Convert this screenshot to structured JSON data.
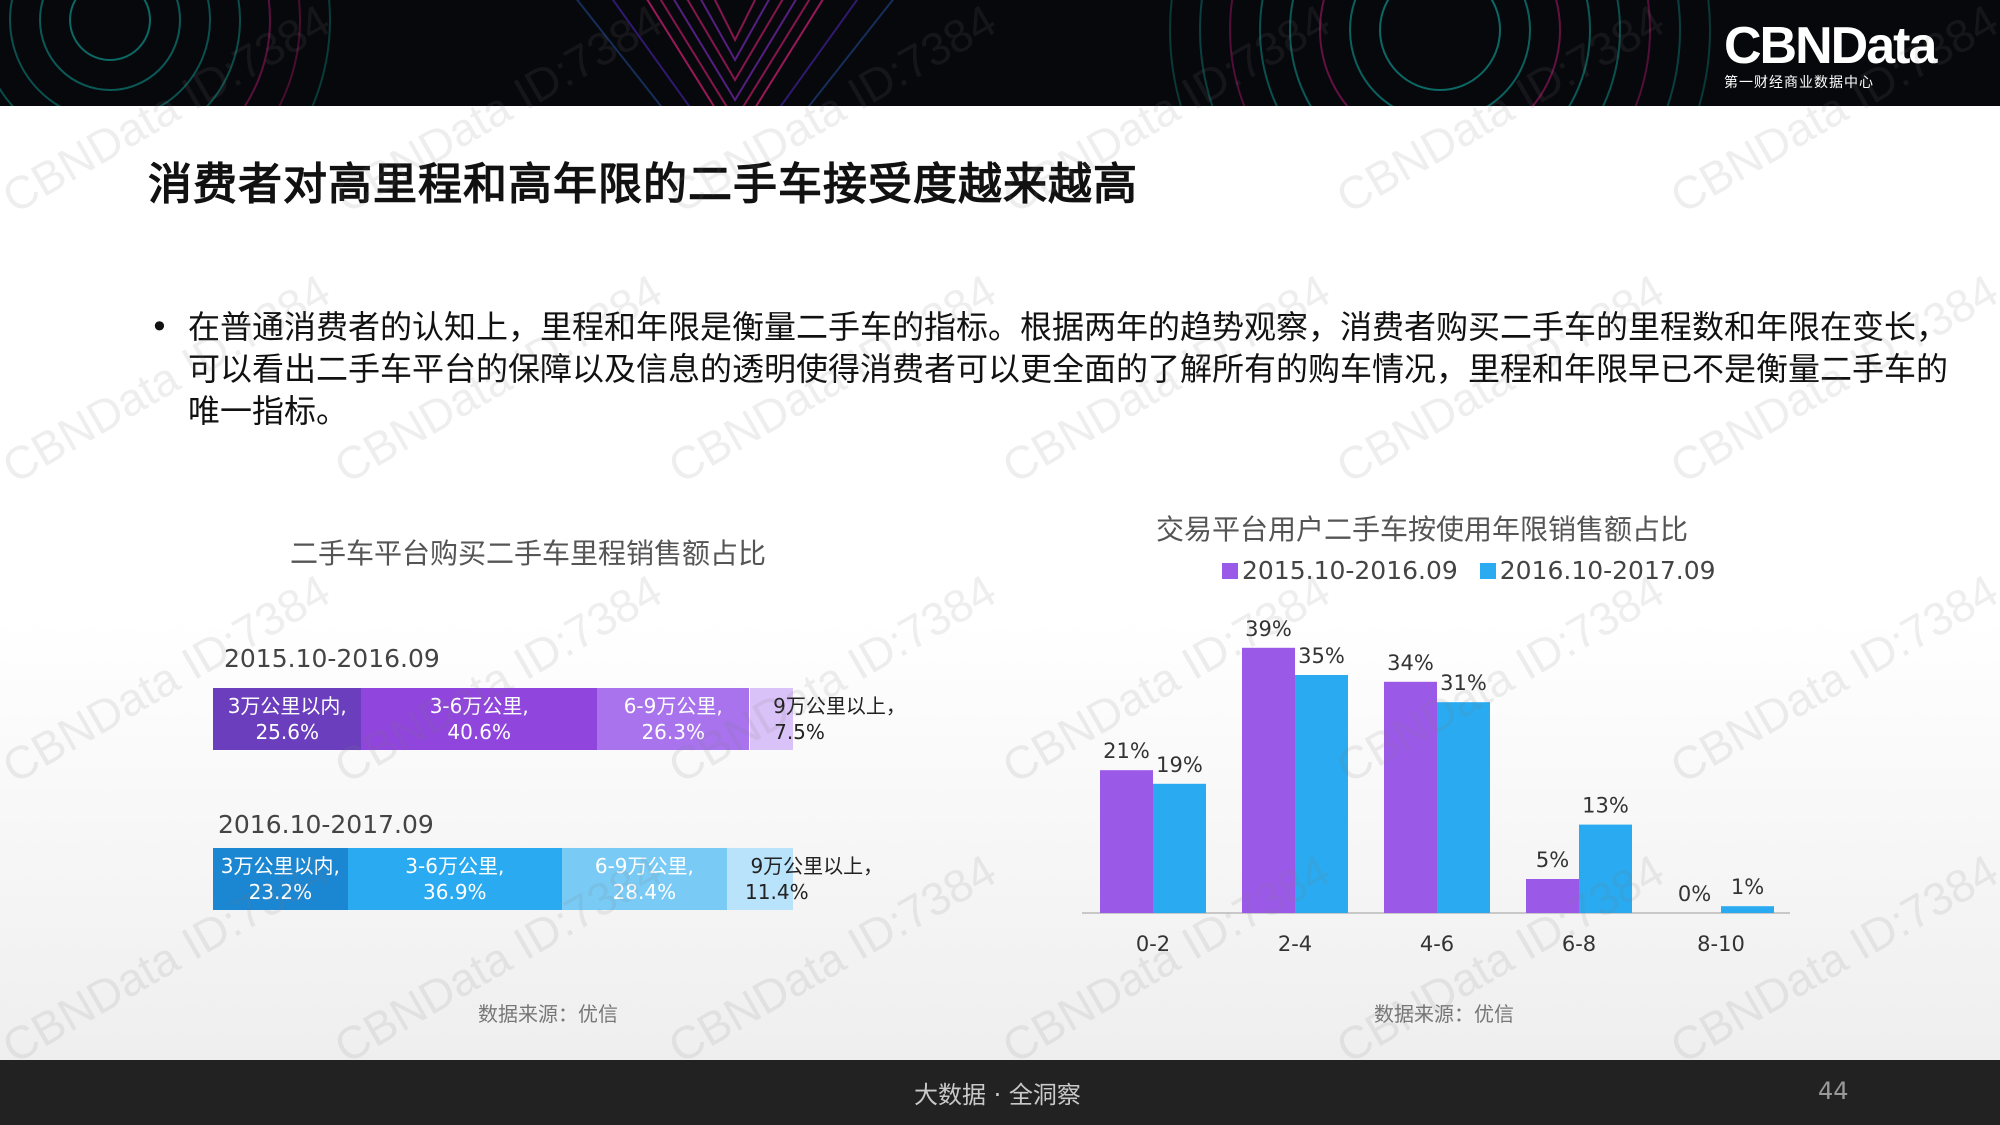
{
  "header": {
    "brand": "CBNData",
    "brand_sub": "第一财经商业数据中心"
  },
  "page": {
    "title": "消费者对高里程和高年限的二手车接受度越来越高",
    "bullet_marker": "•",
    "bullet": "在普通消费者的认知上，里程和年限是衡量二手车的指标。根据两年的趋势观察，消费者购买二手车的里程数和年限在变长，可以看出二手车平台的保障以及信息的透明使得消费者可以更全面的了解所有的购车情况，里程和年限早已不是衡量二手车的唯一指标。",
    "watermark": "CBNData ID:7384"
  },
  "colors": {
    "purple": "#9b59e8",
    "blue": "#2aaaf0",
    "mileage_2015": [
      "#6a3ebd",
      "#9045dc",
      "#a873ec",
      "#d9c2f7"
    ],
    "mileage_2016": [
      "#1b86d1",
      "#2aaaf0",
      "#79cbf6",
      "#b8e3fa"
    ]
  },
  "chart_data": [
    {
      "type": "bar",
      "orientation": "horizontal-stacked",
      "title": "二手车平台购买二手车里程销售额占比",
      "source": "数据来源：优信",
      "unit": "%",
      "rows": [
        {
          "period": "2015.10-2016.09",
          "segments": [
            {
              "name": "3万公里以内,",
              "value": 25.6,
              "label": "25.6%"
            },
            {
              "name": "3-6万公里,",
              "value": 40.6,
              "label": "40.6%"
            },
            {
              "name": "6-9万公里,",
              "value": 26.3,
              "label": "26.3%"
            },
            {
              "name": "9万公里以上，",
              "value": 7.5,
              "label": "7.5%"
            }
          ]
        },
        {
          "period": "2016.10-2017.09",
          "segments": [
            {
              "name": "3万公里以内,",
              "value": 23.2,
              "label": "23.2%"
            },
            {
              "name": "3-6万公里,",
              "value": 36.9,
              "label": "36.9%"
            },
            {
              "name": "6-9万公里,",
              "value": 28.4,
              "label": "28.4%"
            },
            {
              "name": "9万公里以上，",
              "value": 11.4,
              "label": "11.4%"
            }
          ]
        }
      ]
    },
    {
      "type": "bar",
      "title": "交易平台用户二手车按使用年限销售额占比",
      "source": "数据来源：优信",
      "categories": [
        "0-2",
        "2-4",
        "4-6",
        "6-8",
        "8-10"
      ],
      "series": [
        {
          "name": "2015.10-2016.09",
          "values": [
            21,
            39,
            34,
            5,
            0
          ],
          "labels": [
            "21%",
            "39%",
            "34%",
            "5%",
            "0%"
          ]
        },
        {
          "name": "2016.10-2017.09",
          "values": [
            19,
            35,
            31,
            13,
            1
          ],
          "labels": [
            "19%",
            "35%",
            "31%",
            "13%",
            "1%"
          ]
        }
      ],
      "ylim": [
        0,
        40
      ],
      "unit": "%"
    }
  ],
  "footer": {
    "slogan": "大数据 · 全洞察",
    "page_number": "44"
  }
}
